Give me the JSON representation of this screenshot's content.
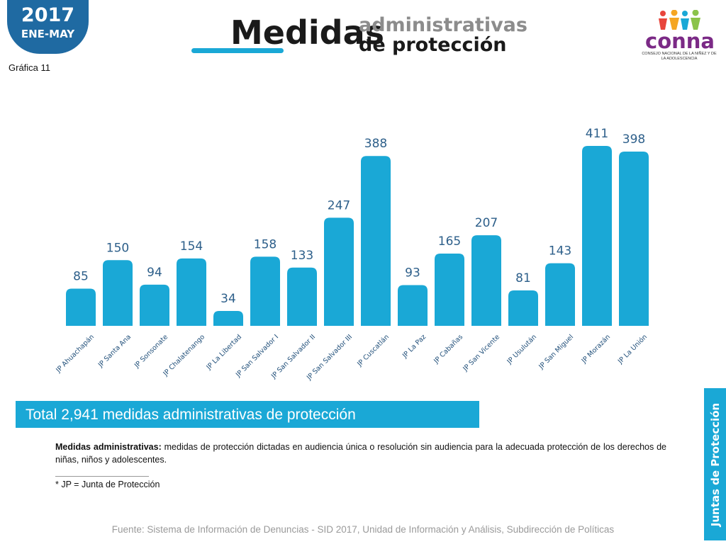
{
  "header": {
    "year": "2017",
    "period": "ENE-MAY",
    "chart_number": "Gráfica 11",
    "title_main": "Medidas",
    "title_sub1": "administrativas",
    "title_sub2": "de protección"
  },
  "logo": {
    "name": "conna",
    "subtitle": "CONSEJO NACIONAL DE LA NIÑEZ Y DE LA ADOLESCENCIA",
    "colors": [
      "#e8453c",
      "#f5a623",
      "#1aa8d6",
      "#8bc34a"
    ]
  },
  "chart_data": {
    "type": "bar",
    "categories": [
      "JP Ahuachapán",
      "JP Santa Ana",
      "JP Sonsonate",
      "JP Chalatenango",
      "JP La Libertad",
      "JP San Salvador I",
      "JP San Salvador II",
      "JP San Salvador III",
      "JP Cuscatlán",
      "JP La Paz",
      "JP Cabañas",
      "JP San Vicente",
      "JP Usulután",
      "JP San Miguel",
      "JP Morazán",
      "JP La Unión"
    ],
    "values": [
      85,
      150,
      94,
      154,
      34,
      158,
      133,
      247,
      388,
      93,
      165,
      207,
      81,
      143,
      411,
      398
    ],
    "ylim": [
      0,
      411
    ],
    "bar_color": "#1aa8d6",
    "label_color": "#2d5f8a",
    "grid": false,
    "legend": "none"
  },
  "summary": {
    "total_text": "Total 2,941 medidas administrativas de protección"
  },
  "definition": {
    "term": "Medidas administrativas:",
    "text": " medidas de protección dictadas en audiencia única o resolución sin audiencia para la adecuada protección de los derechos de niñas, niños y adolescentes."
  },
  "footnote": "* JP = Junta de Protección",
  "source": "Fuente: Sistema de Información de Denuncias - SID 2017, Unidad de Información y Análisis, Subdirección de Políticas",
  "side_tab": "Juntas de Protección"
}
